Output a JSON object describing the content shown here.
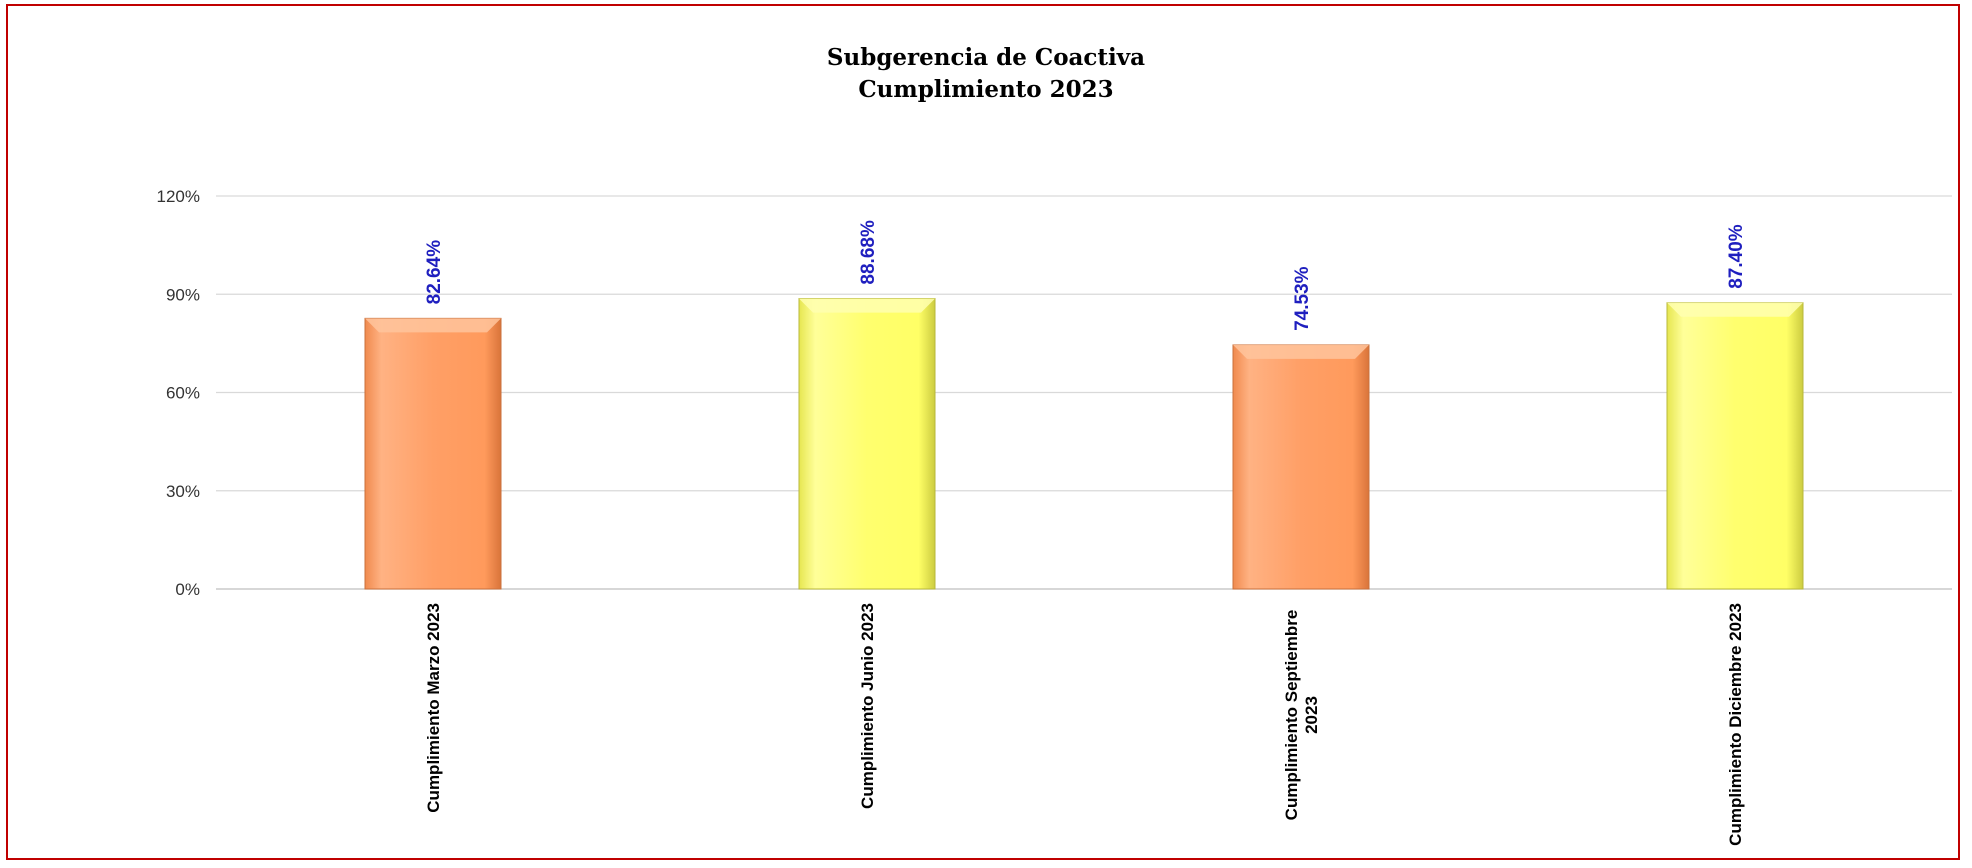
{
  "chart_data": {
    "type": "bar",
    "title": "Subgerencia de Coactiva",
    "subtitle": "Cumplimiento 2023",
    "categories": [
      [
        "Cumplimiento Marzo 2023"
      ],
      [
        "Cumplimiento Junio 2023"
      ],
      [
        "Cumplimiento Septiembre",
        "2023"
      ],
      [
        "Cumplimiento Diciembre 2023"
      ]
    ],
    "values": [
      82.64,
      88.68,
      74.53,
      87.4
    ],
    "data_labels": [
      "82.64%",
      "88.68%",
      "74.53%",
      "87.40%"
    ],
    "ylim": [
      0,
      120
    ],
    "yticks": [
      0,
      30,
      60,
      90,
      120
    ],
    "ytick_labels": [
      "0%",
      "30%",
      "60%",
      "90%",
      "120%"
    ],
    "grid": true,
    "legend": "none",
    "colors": [
      "#ff9a5c",
      "#ffff66",
      "#ff9a5c",
      "#ffff66"
    ],
    "data_label_color": "#1f1fbf",
    "border_color": "#c00000"
  }
}
